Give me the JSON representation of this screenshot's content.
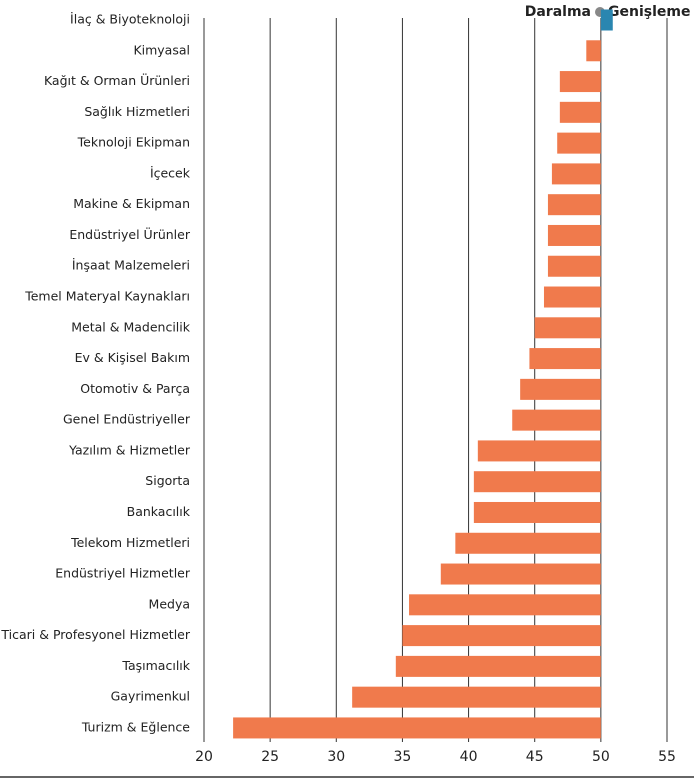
{
  "chart_data": {
    "type": "bar",
    "orientation": "horizontal",
    "legend": {
      "below": "Daralma",
      "above": "Genişleme"
    },
    "baseline": 50,
    "color_below": "#f07a4c",
    "color_above": "#2a86b0",
    "categories": [
      "İlaç & Biyoteknoloji",
      "Kimyasal",
      "Kağıt & Orman Ürünleri",
      "Sağlık Hizmetleri",
      "Teknoloji Ekipman",
      "İçecek",
      "Makine & Ekipman",
      "Endüstriyel Ürünler",
      "İnşaat Malzemeleri",
      "Temel Materyal Kaynakları",
      "Metal & Madencilik",
      "Ev & Kişisel Bakım",
      "Otomotiv & Parça",
      "Genel Endüstriyeller",
      "Yazılım & Hizmetler",
      "Sigorta",
      "Bankacılık",
      "Telekom Hizmetleri",
      "Endüstriyel Hizmetler",
      "Medya",
      "Ticari & Profesyonel Hizmetler",
      "Taşımacılık",
      "Gayrimenkul",
      "Turizm & Eğlence"
    ],
    "values": [
      50.9,
      48.9,
      46.9,
      46.9,
      46.7,
      46.3,
      46.0,
      46.0,
      46.0,
      45.7,
      45.0,
      44.6,
      43.9,
      43.3,
      40.7,
      40.4,
      40.4,
      39.0,
      37.9,
      35.5,
      35.0,
      34.5,
      31.2,
      22.2
    ],
    "xlim": [
      20,
      55
    ],
    "xticks": [
      20,
      25,
      30,
      35,
      40,
      45,
      50,
      55
    ],
    "grid": true
  }
}
